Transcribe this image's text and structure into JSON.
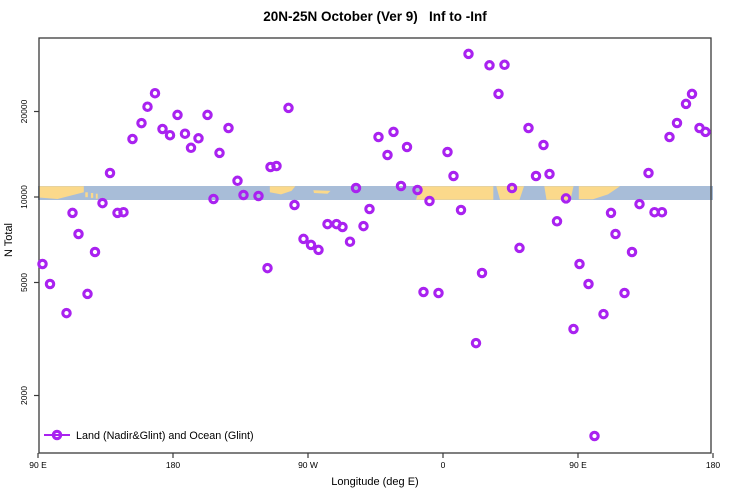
{
  "title": "20N-25N October (Ver 9)   Inf to -Inf",
  "axes": {
    "x_label": "Longitude (deg E)",
    "y_label": "N Total",
    "x_tick_labels": [
      "90 E",
      "180",
      "90 W",
      "0",
      "90 E",
      "180"
    ],
    "x_tick_lons": [
      90,
      180,
      270,
      360,
      450,
      540
    ],
    "y_tick_labels": [
      "2000",
      "5000",
      "10000",
      "20000"
    ],
    "y_tick_values": [
      2000,
      5000,
      10000,
      20000
    ]
  },
  "legend": {
    "label": "Land (Nadir&Glint) and Ocean (Glint)"
  },
  "colors": {
    "point": "#A922F0",
    "ocean": "#A8BDD8",
    "land": "#FBD98B",
    "axis": "#3a3a3a"
  },
  "chart_data": {
    "type": "scatter",
    "title": "20N-25N October (Ver 9)   Inf to -Inf",
    "xlabel": "Longitude (deg E)",
    "ylabel": "N Total",
    "x_axis": {
      "min": 90,
      "max": 540,
      "tick_lons": [
        90,
        180,
        270,
        360,
        450,
        540
      ],
      "tick_labels": [
        "90 E",
        "180",
        "90 W",
        "0",
        "90 E",
        "180"
      ]
    },
    "y_axis": {
      "scale": "log10",
      "min": 1250,
      "max": 36500,
      "ticks": [
        2000,
        5000,
        10000,
        20000
      ]
    },
    "legend_position": "bottom-left",
    "grid": false,
    "series": [
      {
        "name": "Land (Nadir&Glint) and Ocean (Glint)",
        "marker": "open-circle",
        "points_lon_value": [
          [
            113,
            8790
          ],
          [
            117,
            7410
          ],
          [
            93,
            5810
          ],
          [
            98,
            4940
          ],
          [
            109,
            3900
          ],
          [
            123,
            4560
          ],
          [
            128,
            6400
          ],
          [
            133,
            9520
          ],
          [
            138,
            12150
          ],
          [
            143,
            8790
          ],
          [
            147,
            8840
          ],
          [
            153,
            16000
          ],
          [
            159,
            18200
          ],
          [
            163,
            20800
          ],
          [
            168,
            23200
          ],
          [
            173,
            17350
          ],
          [
            178,
            16500
          ],
          [
            183,
            19450
          ],
          [
            188,
            16700
          ],
          [
            192,
            14900
          ],
          [
            197,
            16100
          ],
          [
            203,
            19450
          ],
          [
            207,
            9840
          ],
          [
            211,
            14300
          ],
          [
            217,
            17500
          ],
          [
            223,
            11400
          ],
          [
            227,
            10160
          ],
          [
            237,
            10080
          ],
          [
            245,
            12750
          ],
          [
            249,
            12860
          ],
          [
            243,
            5620
          ],
          [
            257,
            20600
          ],
          [
            261,
            9370
          ],
          [
            267,
            7120
          ],
          [
            272,
            6780
          ],
          [
            277,
            6510
          ],
          [
            283,
            8030
          ],
          [
            289,
            8030
          ],
          [
            293,
            7840
          ],
          [
            298,
            6960
          ],
          [
            302,
            10760
          ],
          [
            307,
            7900
          ],
          [
            311,
            9070
          ],
          [
            317,
            16270
          ],
          [
            323,
            14060
          ],
          [
            327,
            16950
          ],
          [
            332,
            10930
          ],
          [
            336,
            15000
          ],
          [
            343,
            10580
          ],
          [
            347,
            4630
          ],
          [
            351,
            9680
          ],
          [
            357,
            4590
          ],
          [
            363,
            14400
          ],
          [
            367,
            11860
          ],
          [
            372,
            9000
          ],
          [
            377,
            31900
          ],
          [
            382,
            3060
          ],
          [
            386,
            5400
          ],
          [
            391,
            29100
          ],
          [
            397,
            23060
          ],
          [
            401,
            29200
          ],
          [
            406,
            10760
          ],
          [
            411,
            6620
          ],
          [
            417,
            17500
          ],
          [
            422,
            11860
          ],
          [
            427,
            15250
          ],
          [
            431,
            12050
          ],
          [
            436,
            8210
          ],
          [
            442,
            9890
          ],
          [
            447,
            3430
          ],
          [
            451,
            5810
          ],
          [
            457,
            4940
          ],
          [
            461,
            1440
          ],
          [
            467,
            3870
          ],
          [
            472,
            8790
          ],
          [
            475,
            7410
          ],
          [
            481,
            4590
          ],
          [
            486,
            6400
          ],
          [
            491,
            9440
          ],
          [
            497,
            12150
          ],
          [
            501,
            8840
          ],
          [
            506,
            8840
          ],
          [
            511,
            16270
          ],
          [
            516,
            18220
          ],
          [
            522,
            21280
          ],
          [
            526,
            23060
          ],
          [
            531,
            17500
          ],
          [
            535,
            16950
          ]
        ]
      }
    ],
    "map_band": {
      "center_value": 10000,
      "land_polygons_lon_frac": [
        [
          [
            90.5,
            0.02
          ],
          [
            120.5,
            0.02
          ],
          [
            120.5,
            0.45
          ],
          [
            103,
            0.93
          ],
          [
            90.5,
            0.82
          ]
        ],
        [
          [
            121.5,
            0.45
          ],
          [
            123.2,
            0.45
          ],
          [
            123.2,
            0.8
          ],
          [
            121.5,
            0.8
          ]
        ],
        [
          [
            125.3,
            0.5
          ],
          [
            126.8,
            0.5
          ],
          [
            126.8,
            0.85
          ],
          [
            125.3,
            0.85
          ]
        ],
        [
          [
            128.5,
            0.55
          ],
          [
            129.8,
            0.55
          ],
          [
            129.8,
            0.9
          ],
          [
            128.5,
            0.9
          ]
        ],
        [
          [
            244.5,
            0.02
          ],
          [
            261.5,
            0.02
          ],
          [
            259,
            0.35
          ],
          [
            252,
            0.6
          ],
          [
            244.5,
            0.45
          ]
        ],
        [
          [
            273.5,
            0.3
          ],
          [
            285,
            0.35
          ],
          [
            283,
            0.55
          ],
          [
            274,
            0.5
          ]
        ],
        [
          [
            345,
            0.02
          ],
          [
            393.5,
            0.02
          ],
          [
            393.5,
            0.98
          ],
          [
            342,
            0.98
          ]
        ],
        [
          [
            395.5,
            0.02
          ],
          [
            414,
            0.02
          ],
          [
            411,
            0.98
          ],
          [
            398,
            0.98
          ]
        ],
        [
          [
            427.5,
            0.02
          ],
          [
            447,
            0.02
          ],
          [
            445,
            0.98
          ],
          [
            429,
            0.98
          ]
        ],
        [
          [
            450.5,
            0.02
          ],
          [
            478,
            0.02
          ],
          [
            470,
            0.6
          ],
          [
            460,
            0.95
          ],
          [
            450.5,
            0.95
          ]
        ]
      ]
    }
  }
}
